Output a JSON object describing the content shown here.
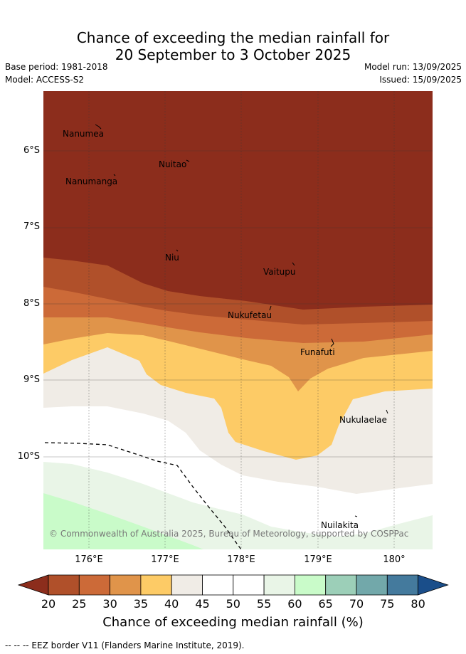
{
  "title": {
    "line1": "Chance of exceeding the median rainfall for",
    "line2": "20 September to 3 October 2025"
  },
  "meta": {
    "base_period": "Base period: 1981-2018",
    "model": "Model: ACCESS-S2",
    "model_run": "Model run: 13/09/2025",
    "issued": "Issued: 15/09/2025"
  },
  "map": {
    "lat_labels": [
      "6°S",
      "7°S",
      "8°S",
      "9°S",
      "10°S"
    ],
    "lon_labels": [
      "176°E",
      "177°E",
      "178°E",
      "179°E",
      "180°"
    ],
    "places": [
      "Nanumea",
      "Nuitao",
      "Nanumanga",
      "Niu",
      "Vaitupu",
      "Nukufetau",
      "Funafuti",
      "Nukulaelae",
      "Nuilakita"
    ],
    "copyright": "© Commonwealth of Australia 2025, Bureau of Meteorology, supported by COSPPac"
  },
  "colorbar": {
    "ticks": [
      "20",
      "25",
      "30",
      "35",
      "40",
      "45",
      "50",
      "55",
      "60",
      "65",
      "70",
      "75",
      "80"
    ],
    "title": "Chance of exceeding median rainfall (%)",
    "colors": [
      "#8c2d1c",
      "#b0502a",
      "#cc6a38",
      "#e0944a",
      "#fdcb66",
      "#f0ece6",
      "#ffffff",
      "#ffffff",
      "#e9f5e7",
      "#c9fbc9",
      "#9ccfb8",
      "#72a8aa",
      "#447a9d",
      "#1a4e8a"
    ]
  },
  "footer": "-- -- -- EEZ border V11 (Flanders Marine Institute, 2019)."
}
